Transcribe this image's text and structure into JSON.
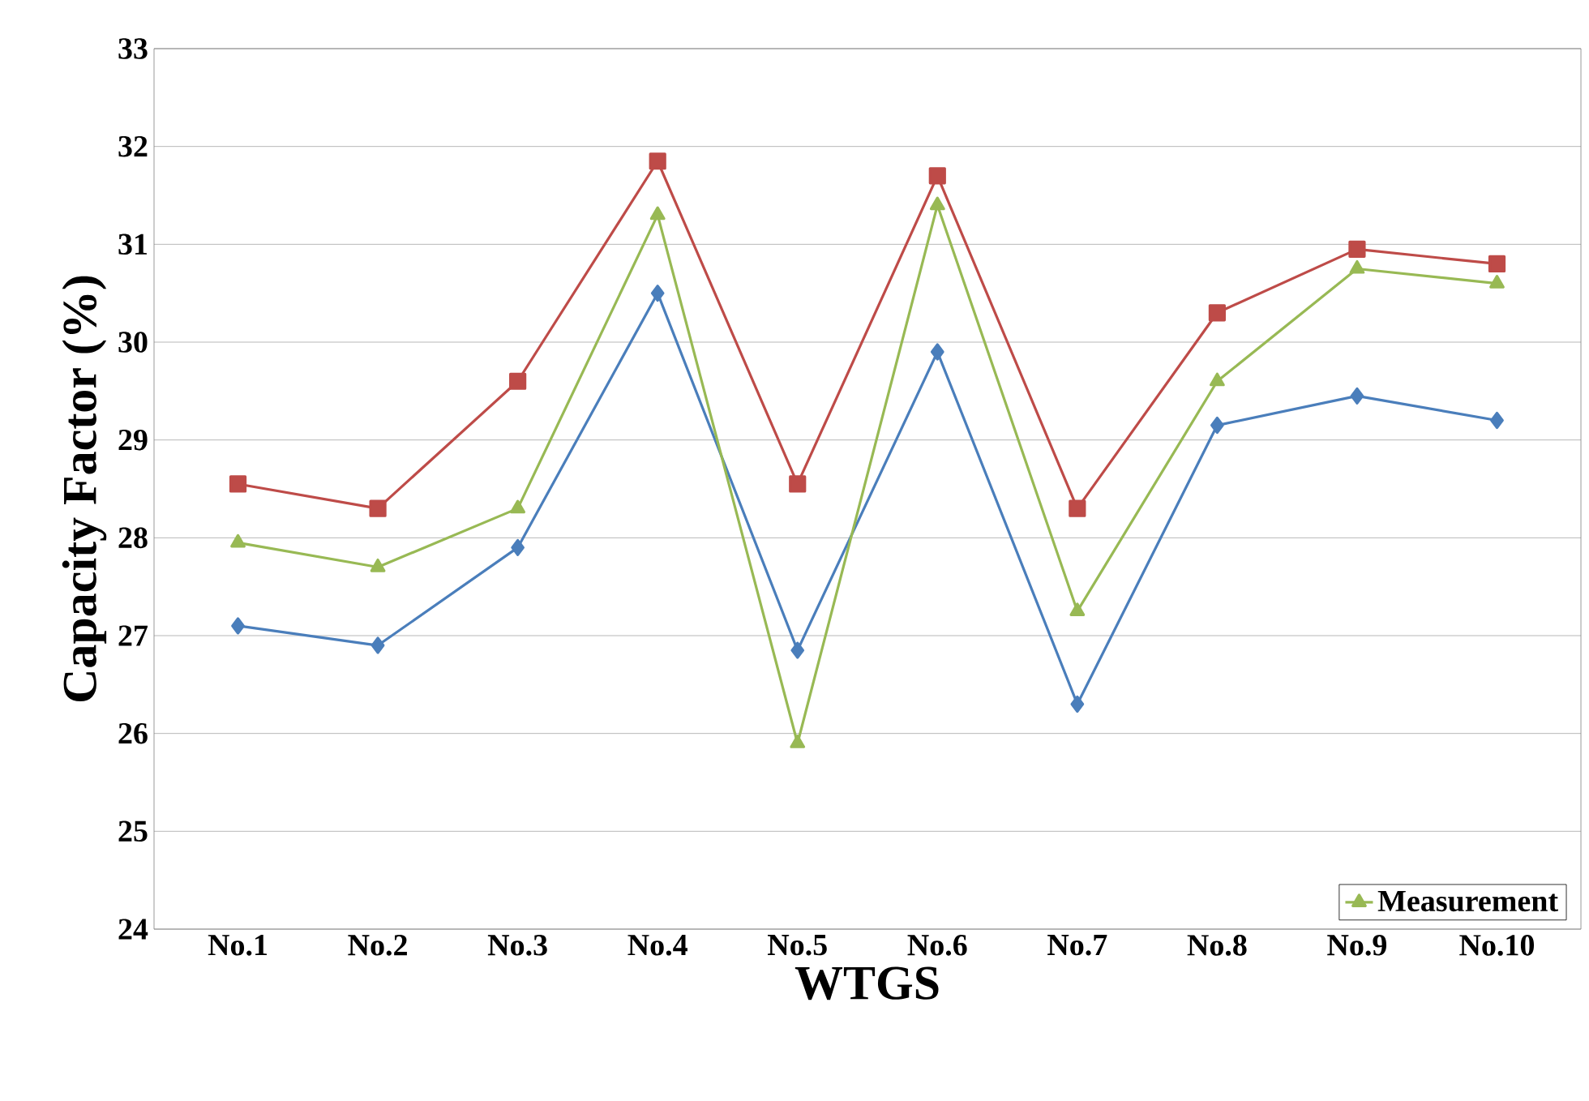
{
  "chart_data": {
    "type": "line",
    "xlabel": "WTGS",
    "ylabel": "Capacity Factor (%)",
    "categories": [
      "No.1",
      "No.2",
      "No.3",
      "No.4",
      "No.5",
      "No.6",
      "No.7",
      "No.8",
      "No.9",
      "No.10"
    ],
    "series": [
      {
        "color": "#4a7ebb",
        "marker": "diamond",
        "values": [
          27.1,
          26.9,
          27.9,
          30.5,
          26.85,
          29.9,
          26.3,
          29.15,
          29.45,
          29.2
        ]
      },
      {
        "color": "#be4b48",
        "marker": "square",
        "values": [
          28.55,
          28.3,
          29.6,
          31.85,
          28.55,
          31.7,
          28.3,
          30.3,
          30.95,
          30.8
        ]
      },
      {
        "name": "Measurement",
        "color": "#98b954",
        "marker": "triangle",
        "values": [
          27.95,
          27.7,
          28.3,
          31.3,
          25.9,
          31.4,
          27.25,
          29.6,
          30.75,
          30.6
        ]
      }
    ],
    "ylim": [
      24,
      33
    ],
    "yticks": [
      24,
      25,
      26,
      27,
      28,
      29,
      30,
      31,
      32,
      33
    ],
    "grid": "y",
    "legend": "bottom right"
  }
}
